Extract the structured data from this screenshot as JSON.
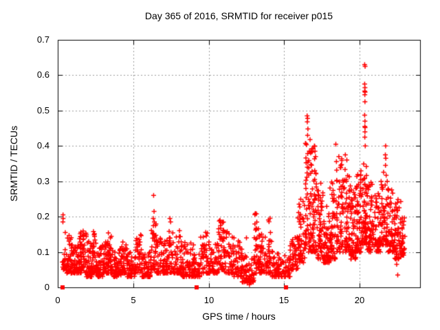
{
  "chart_data": {
    "type": "scatter",
    "title": "Day 365 of 2016, SRMTID for receiver p015",
    "xlabel": "GPS time / hours",
    "ylabel": "SRMTID / TECUs",
    "xlim": [
      0,
      24
    ],
    "ylim": [
      0,
      0.7
    ],
    "grid": true,
    "legend": false,
    "xticks": {
      "values": [
        0,
        5,
        10,
        15,
        20
      ],
      "labels": [
        "0",
        "5",
        "10",
        "15",
        "20"
      ]
    },
    "yticks": {
      "values": [
        0,
        0.1,
        0.2,
        0.3,
        0.4,
        0.5,
        0.6,
        0.7
      ],
      "labels": [
        "0",
        "0.1",
        "0.2",
        "0.3",
        "0.4",
        "0.5",
        "0.6",
        "0.7"
      ]
    },
    "colors": {
      "marker": "#ff0000",
      "axis": "#000000",
      "grid": "#999999",
      "background": "#ffffff",
      "text": "#000000"
    },
    "seed": 20161231,
    "series": [
      {
        "name": "SRMTID",
        "marker": "plus",
        "color": "#ff0000",
        "bands": [
          [
            0.3,
            0.6,
            22,
            0.05,
            0.14,
            1.8
          ],
          [
            0.6,
            1.0,
            45,
            0.04,
            0.15,
            2.0
          ],
          [
            1.0,
            1.4,
            45,
            0.04,
            0.12,
            2.0
          ],
          [
            1.4,
            1.9,
            55,
            0.04,
            0.16,
            2.0
          ],
          [
            1.9,
            2.3,
            45,
            0.03,
            0.13,
            2.0
          ],
          [
            2.3,
            2.6,
            40,
            0.04,
            0.16,
            1.9
          ],
          [
            2.6,
            3.0,
            45,
            0.03,
            0.12,
            2.0
          ],
          [
            3.0,
            3.35,
            40,
            0.04,
            0.13,
            2.0
          ],
          [
            3.35,
            3.6,
            30,
            0.04,
            0.16,
            1.8
          ],
          [
            3.6,
            4.2,
            55,
            0.03,
            0.11,
            2.0
          ],
          [
            4.2,
            4.6,
            40,
            0.04,
            0.13,
            2.0
          ],
          [
            4.6,
            5.1,
            45,
            0.03,
            0.1,
            2.0
          ],
          [
            5.1,
            5.55,
            40,
            0.04,
            0.15,
            1.9
          ],
          [
            5.55,
            6.2,
            55,
            0.03,
            0.1,
            2.0
          ],
          [
            6.2,
            6.55,
            35,
            0.05,
            0.18,
            1.5
          ],
          [
            6.55,
            7.2,
            55,
            0.04,
            0.14,
            1.9
          ],
          [
            7.2,
            7.6,
            40,
            0.04,
            0.19,
            1.8
          ],
          [
            7.6,
            8.2,
            50,
            0.04,
            0.17,
            2.0
          ],
          [
            8.2,
            9.0,
            65,
            0.03,
            0.13,
            2.1
          ],
          [
            9.0,
            9.45,
            38,
            0.03,
            0.1,
            2.0
          ],
          [
            9.45,
            10.0,
            45,
            0.04,
            0.165,
            1.8
          ],
          [
            10.0,
            10.6,
            50,
            0.04,
            0.13,
            2.0
          ],
          [
            10.6,
            11.0,
            40,
            0.05,
            0.19,
            1.7
          ],
          [
            11.0,
            11.6,
            50,
            0.04,
            0.16,
            1.9
          ],
          [
            11.6,
            12.2,
            50,
            0.03,
            0.14,
            2.0
          ],
          [
            12.2,
            13.0,
            60,
            0.015,
            0.09,
            1.8
          ],
          [
            13.0,
            13.3,
            32,
            0.04,
            0.21,
            1.8
          ],
          [
            13.3,
            13.8,
            45,
            0.04,
            0.16,
            2.0
          ],
          [
            13.8,
            14.2,
            38,
            0.04,
            0.21,
            1.9
          ],
          [
            14.2,
            14.8,
            45,
            0.03,
            0.1,
            2.0
          ],
          [
            14.8,
            15.4,
            40,
            0.03,
            0.09,
            2.0
          ],
          [
            15.4,
            15.9,
            45,
            0.05,
            0.16,
            1.7
          ],
          [
            15.9,
            16.4,
            55,
            0.07,
            0.26,
            1.6
          ],
          [
            16.4,
            16.8,
            60,
            0.1,
            0.42,
            1.6
          ],
          [
            16.8,
            17.2,
            60,
            0.1,
            0.4,
            1.7
          ],
          [
            17.2,
            17.6,
            55,
            0.08,
            0.3,
            1.7
          ],
          [
            17.6,
            18.0,
            55,
            0.07,
            0.24,
            1.8
          ],
          [
            18.0,
            18.4,
            55,
            0.08,
            0.3,
            1.7
          ],
          [
            18.4,
            18.9,
            60,
            0.1,
            0.37,
            1.7
          ],
          [
            18.9,
            19.4,
            60,
            0.1,
            0.345,
            1.6
          ],
          [
            19.4,
            19.8,
            55,
            0.08,
            0.28,
            1.7
          ],
          [
            19.8,
            20.2,
            60,
            0.1,
            0.33,
            1.6
          ],
          [
            20.2,
            20.5,
            55,
            0.12,
            0.35,
            1.5
          ],
          [
            20.5,
            21.0,
            60,
            0.1,
            0.3,
            1.7
          ],
          [
            21.0,
            21.45,
            55,
            0.1,
            0.27,
            1.7
          ],
          [
            21.45,
            21.85,
            50,
            0.12,
            0.33,
            1.6
          ],
          [
            21.85,
            22.3,
            55,
            0.1,
            0.28,
            1.7
          ],
          [
            22.3,
            22.75,
            55,
            0.08,
            0.25,
            1.7
          ],
          [
            22.75,
            23.0,
            30,
            0.09,
            0.2,
            1.7
          ]
        ],
        "outliers": [
          [
            0.35,
            0.205
          ],
          [
            0.36,
            0.195
          ],
          [
            0.34,
            0.185
          ],
          [
            0.5,
            0.155
          ],
          [
            6.35,
            0.26
          ],
          [
            6.38,
            0.215
          ],
          [
            6.33,
            0.195
          ],
          [
            6.4,
            0.185
          ],
          [
            7.43,
            0.195
          ],
          [
            10.75,
            0.19
          ],
          [
            10.78,
            0.175
          ],
          [
            12.5,
            0.14
          ],
          [
            12.55,
            0.012
          ],
          [
            12.7,
            0.008
          ],
          [
            16.52,
            0.485
          ],
          [
            16.55,
            0.478
          ],
          [
            16.53,
            0.468
          ],
          [
            16.57,
            0.448
          ],
          [
            16.55,
            0.43
          ],
          [
            17.0,
            0.4
          ],
          [
            17.04,
            0.385
          ],
          [
            17.08,
            0.37
          ],
          [
            18.42,
            0.405
          ],
          [
            18.62,
            0.37
          ],
          [
            18.75,
            0.345
          ],
          [
            19.05,
            0.375
          ],
          [
            19.15,
            0.36
          ],
          [
            20.33,
            0.63
          ],
          [
            20.36,
            0.625
          ],
          [
            20.33,
            0.575
          ],
          [
            20.35,
            0.565
          ],
          [
            20.33,
            0.555
          ],
          [
            20.36,
            0.552
          ],
          [
            20.34,
            0.545
          ],
          [
            20.35,
            0.525
          ],
          [
            20.33,
            0.487
          ],
          [
            20.35,
            0.47
          ],
          [
            20.34,
            0.455
          ],
          [
            20.36,
            0.452
          ],
          [
            20.35,
            0.44
          ],
          [
            20.34,
            0.425
          ],
          [
            20.37,
            0.4
          ],
          [
            21.42,
            0.3
          ],
          [
            21.45,
            0.29
          ],
          [
            21.72,
            0.4
          ],
          [
            21.7,
            0.375
          ],
          [
            21.73,
            0.365
          ],
          [
            21.71,
            0.345
          ],
          [
            22.45,
            0.065
          ],
          [
            22.52,
            0.035
          ]
        ]
      },
      {
        "name": "zero-value markers",
        "marker": "square",
        "color": "#ff0000",
        "points": [
          [
            0.33,
            0
          ],
          [
            9.2,
            0
          ],
          [
            15.1,
            0
          ]
        ]
      }
    ]
  }
}
